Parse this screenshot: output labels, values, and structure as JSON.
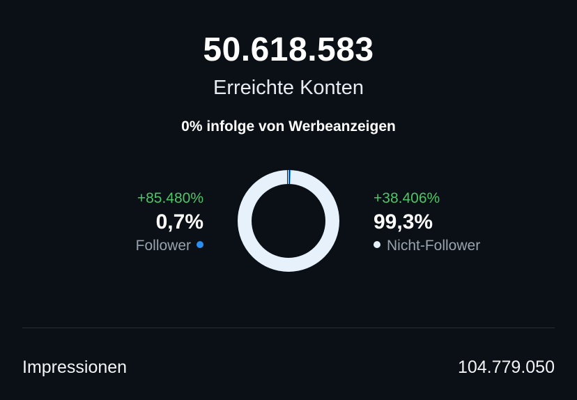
{
  "summary": {
    "total_value": "50.618.583",
    "total_label": "Erreichte Konten",
    "ads_note": "0% infolge von Werbeanzeigen"
  },
  "breakdown": {
    "follower": {
      "delta": "+85.480%",
      "percent": "0,7%",
      "label": "Follower",
      "color": "#2a8ff0",
      "share": 0.7
    },
    "non_follower": {
      "delta": "+38.406%",
      "percent": "99,3%",
      "label": "Nicht-Follower",
      "color": "#e6f1fc",
      "share": 99.3
    }
  },
  "impressions": {
    "label": "Impressionen",
    "value": "104.779.050"
  }
}
